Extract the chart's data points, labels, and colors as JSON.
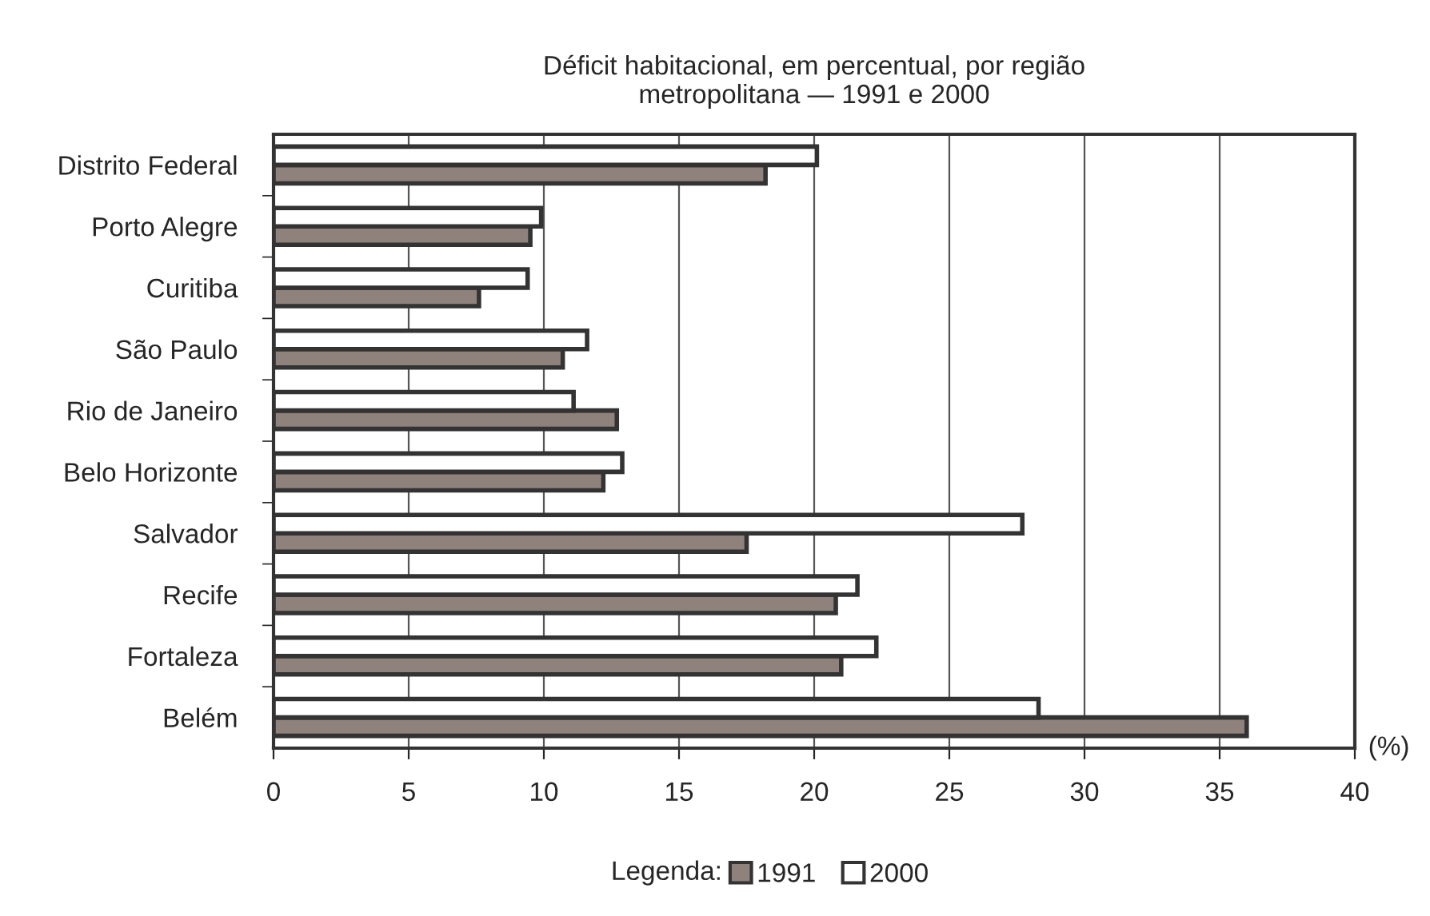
{
  "chart_data": {
    "type": "bar",
    "orientation": "horizontal",
    "title": "Déficit habitacional, em percentual, por região\nmetropolitana — 1991 e 2000",
    "categories": [
      "Distrito Federal",
      "Porto Alegre",
      "Curitiba",
      "São Paulo",
      "Rio de Janeiro",
      "Belo Horizonte",
      "Salvador",
      "Recife",
      "Fortaleza",
      "Belém"
    ],
    "series": [
      {
        "name": "1991",
        "color": "#8f827c",
        "values": [
          18.2,
          9.5,
          7.6,
          10.7,
          12.7,
          12.2,
          17.5,
          20.8,
          21.0,
          36.0
        ]
      },
      {
        "name": "2000",
        "color": "#ffffff",
        "values": [
          20.1,
          9.9,
          9.4,
          11.6,
          11.1,
          12.9,
          27.7,
          21.6,
          22.3,
          28.3
        ]
      }
    ],
    "xlabel": "(%)",
    "xlim": [
      0,
      40
    ],
    "xticks": [
      0,
      5,
      10,
      15,
      20,
      25,
      30,
      35,
      40
    ],
    "grid": "x",
    "legend": "bottom",
    "legend_title": "Legenda:"
  }
}
